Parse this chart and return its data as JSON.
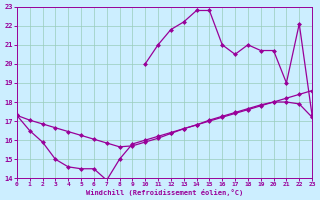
{
  "x_all": [
    0,
    1,
    2,
    3,
    4,
    5,
    6,
    7,
    8,
    9,
    10,
    11,
    12,
    13,
    14,
    15,
    16,
    17,
    18,
    19,
    20,
    21,
    22,
    23
  ],
  "line_bottom": [
    17.3,
    16.5,
    15.9,
    15.0,
    14.6,
    14.5,
    14.5,
    13.9,
    15.0,
    15.8,
    16.0,
    16.2,
    16.4,
    16.6,
    16.8,
    17.0,
    17.2,
    17.4,
    17.6,
    17.8,
    18.0,
    18.2,
    18.4,
    18.6
  ],
  "line_mid_x": [
    0,
    1,
    2,
    3,
    4,
    5,
    6,
    7,
    8,
    9,
    10,
    11,
    12,
    13,
    14,
    15,
    16,
    17,
    18,
    19,
    20,
    21,
    22,
    23
  ],
  "line_mid": [
    17.3,
    17.05,
    16.85,
    16.65,
    16.45,
    16.25,
    16.05,
    15.85,
    15.65,
    15.7,
    15.9,
    16.1,
    16.35,
    16.6,
    16.8,
    17.05,
    17.25,
    17.45,
    17.65,
    17.85,
    18.0,
    18.0,
    17.9,
    17.2
  ],
  "line_top_x": [
    0,
    10,
    11,
    12,
    13,
    14,
    15,
    16,
    17,
    18,
    19,
    20,
    21,
    22,
    23
  ],
  "line_top": [
    17.3,
    20.0,
    21.0,
    21.8,
    22.2,
    22.8,
    22.8,
    21.0,
    20.5,
    21.0,
    20.7,
    20.7,
    19.0,
    22.1,
    17.3
  ],
  "color": "#990099",
  "bg_color": "#cceeff",
  "grid_color": "#99ccbb",
  "xlabel": "Windchill (Refroidissement éolien,°C)",
  "xlim": [
    0,
    23
  ],
  "ylim": [
    14,
    23
  ],
  "xticks": [
    0,
    1,
    2,
    3,
    4,
    5,
    6,
    7,
    8,
    9,
    10,
    11,
    12,
    13,
    14,
    15,
    16,
    17,
    18,
    19,
    20,
    21,
    22,
    23
  ],
  "yticks": [
    14,
    15,
    16,
    17,
    18,
    19,
    20,
    21,
    22,
    23
  ],
  "markersize": 2.5,
  "linewidth": 0.9
}
